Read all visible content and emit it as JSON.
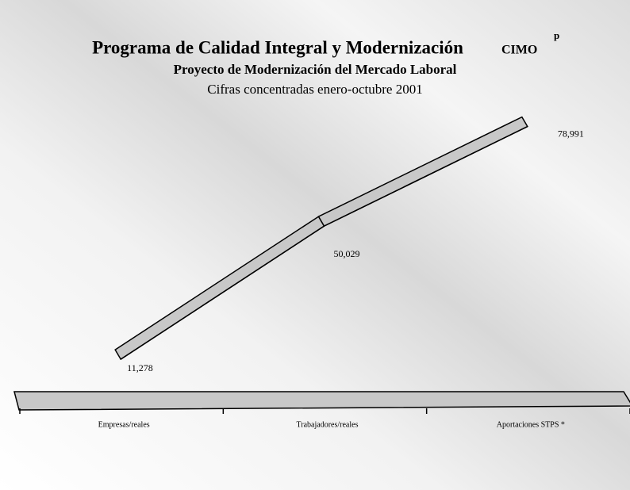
{
  "chart_data": {
    "type": "line3d",
    "title": "Programa de Calidad Integral y Modernización",
    "title_tag": "CIMO",
    "title_tag_superscript": "p",
    "subtitle": "Proyecto de Modernización del Mercado Laboral",
    "caption": "Cifras concentradas enero-octubre 2001",
    "categories": [
      "Empresas/reales",
      "Trabajadores/reales",
      "Aportaciones STPS *"
    ],
    "values": [
      11278,
      50029,
      78991
    ],
    "value_labels": [
      "11,278",
      "50,029",
      "78,991"
    ],
    "color": "#c8c8c8"
  }
}
